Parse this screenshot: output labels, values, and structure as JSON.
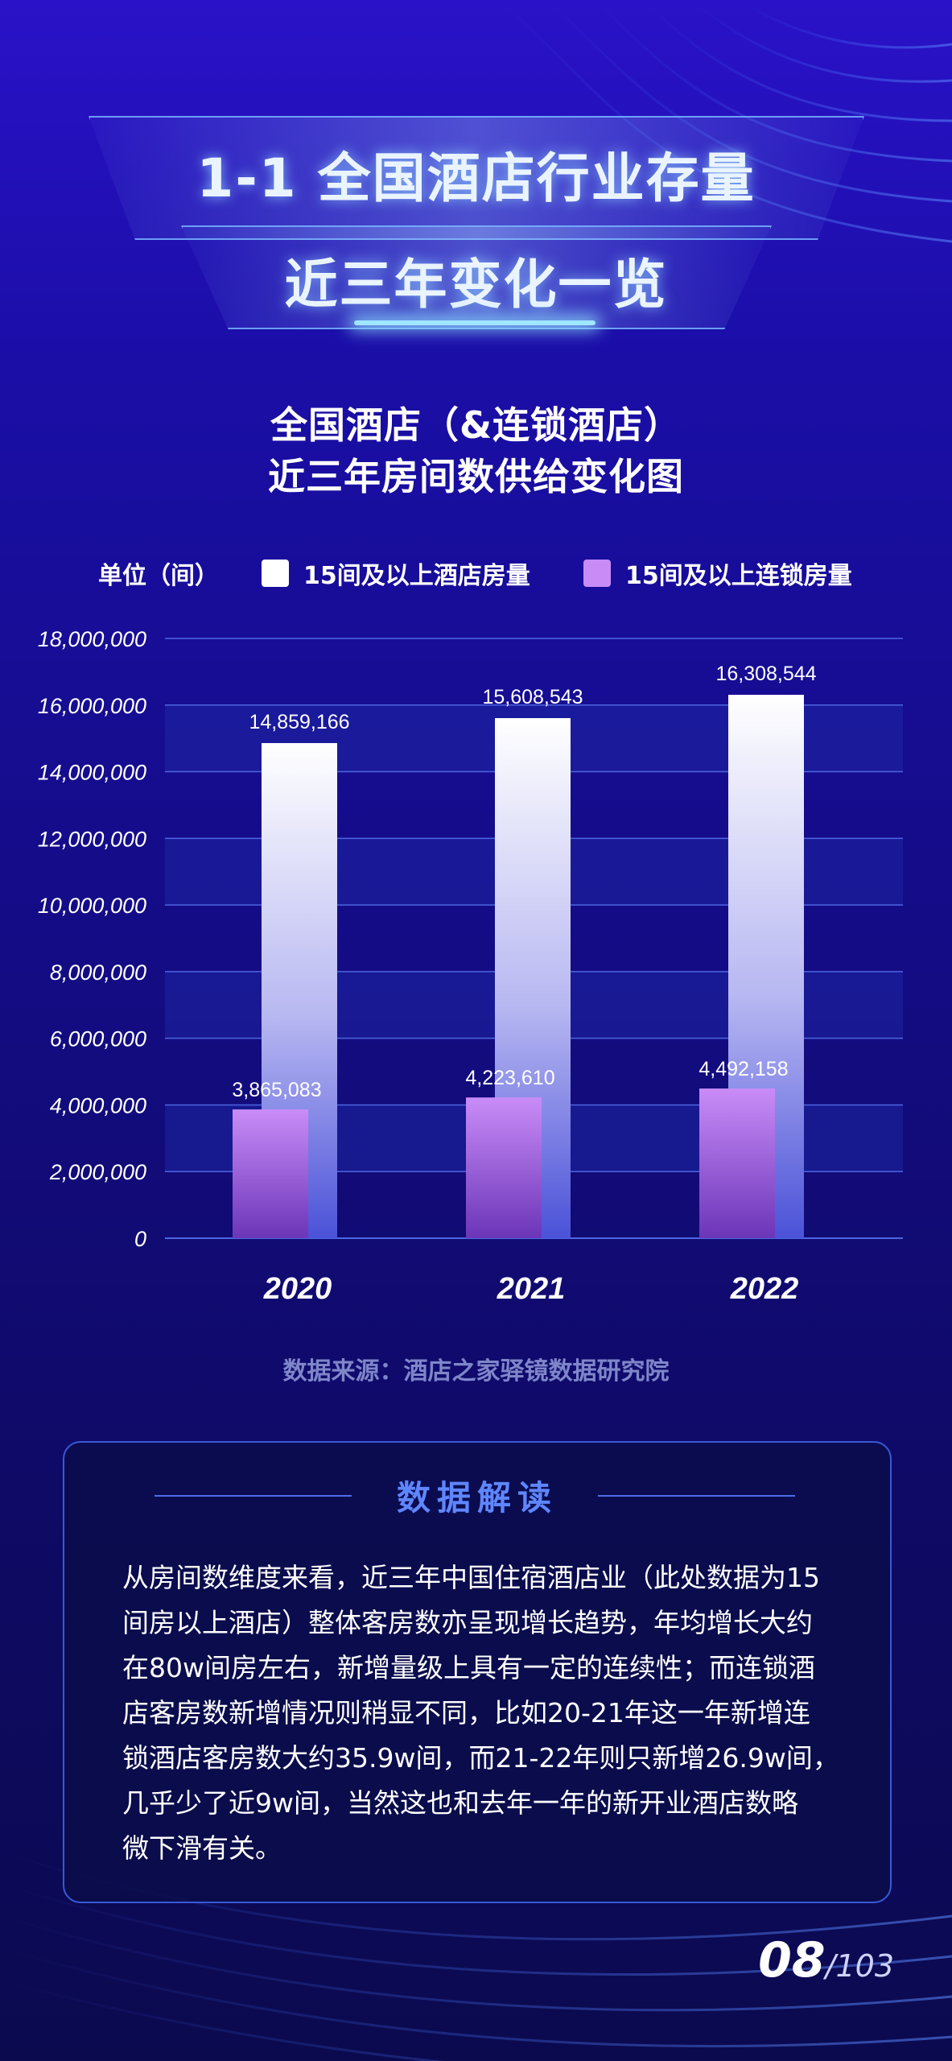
{
  "header": {
    "line1": "1-1 全国酒店行业存量",
    "line2": "近三年变化一览"
  },
  "chart_title": {
    "line1": "全国酒店（&连锁酒店）",
    "line2": "近三年房间数供给变化图"
  },
  "legend": {
    "unit": "单位（间）",
    "items": [
      {
        "label": "15间及以上酒店房量",
        "color": "#ffffff"
      },
      {
        "label": "15间及以上连锁房量",
        "color": "#c98cf7"
      }
    ]
  },
  "chart_data": {
    "type": "bar",
    "categories": [
      "2020",
      "2021",
      "2022"
    ],
    "series": [
      {
        "name": "15间及以上酒店房量",
        "values": [
          14859166,
          15608543,
          16308544
        ],
        "labels": [
          "14,859,166",
          "15,608,543",
          "16,308,544"
        ]
      },
      {
        "name": "15间及以上连锁房量",
        "values": [
          3865083,
          4223610,
          4492158
        ],
        "labels": [
          "3,865,083",
          "4,223,610",
          "4,492,158"
        ]
      }
    ],
    "ylim": [
      0,
      18000000
    ],
    "yticks": [
      0,
      2000000,
      4000000,
      6000000,
      8000000,
      10000000,
      12000000,
      14000000,
      16000000,
      18000000
    ],
    "ytick_labels": [
      "0",
      "2,000,000",
      "4,000,000",
      "6,000,000",
      "8,000,000",
      "10,000,000",
      "12,000,000",
      "14,000,000",
      "16,000,000",
      "18,000,000"
    ],
    "grid": true,
    "legend_position": "top"
  },
  "source": "数据来源：酒店之家驿镜数据研究院",
  "card": {
    "heading": "数据解读",
    "lines": [
      "从房间数维度来看，近三年中国住宿酒店业（此处数据为15",
      "间房以上酒店）整体客房数亦呈现增长趋势，年均增长大约",
      "在80w间房左右，新增量级上具有一定的连续性；而连锁酒",
      "店客房数新增情况则稍显不同，比如20-21年这一年新增连",
      "锁酒店客房数大约35.9w间，而21-22年则只新增26.9w间，",
      "几乎少了近9w间，当然这也和去年一年的新开业酒店数略",
      "微下滑有关。"
    ]
  },
  "page": {
    "current": "08",
    "total": "/103"
  }
}
